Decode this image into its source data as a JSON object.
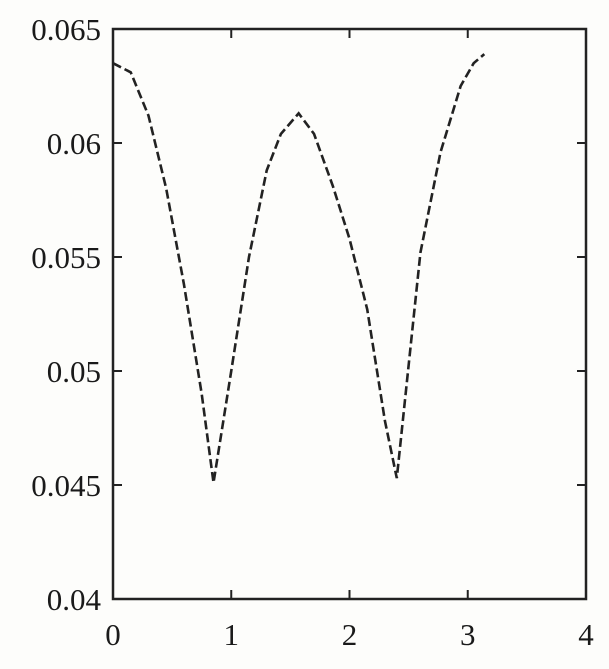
{
  "chart_data": {
    "type": "line",
    "title": "",
    "xlabel": "",
    "ylabel": "",
    "xlim": [
      0,
      4
    ],
    "ylim": [
      0.04,
      0.065
    ],
    "grid": false,
    "xticks": [
      "0",
      "1",
      "2",
      "3",
      "4"
    ],
    "yticks": [
      "0.04",
      "0.045",
      "0.05",
      "0.055",
      "0.06",
      "0.065"
    ],
    "line_style": "dashed",
    "line_color": "#222222",
    "series": [
      {
        "x": [
          0,
          0.15,
          0.3,
          0.45,
          0.6,
          0.75,
          0.85,
          1.0,
          1.15,
          1.3,
          1.42,
          1.57,
          1.7,
          1.86,
          2.0,
          2.15,
          2.3,
          2.4,
          2.6,
          2.77,
          2.94,
          3.05,
          3.14
        ],
        "y": [
          0.0635,
          0.0631,
          0.0612,
          0.058,
          0.0538,
          0.049,
          0.0451,
          0.05,
          0.055,
          0.0588,
          0.0604,
          0.0613,
          0.0604,
          0.0581,
          0.0558,
          0.0527,
          0.0478,
          0.0453,
          0.0552,
          0.0596,
          0.0625,
          0.0635,
          0.0639
        ]
      }
    ]
  }
}
